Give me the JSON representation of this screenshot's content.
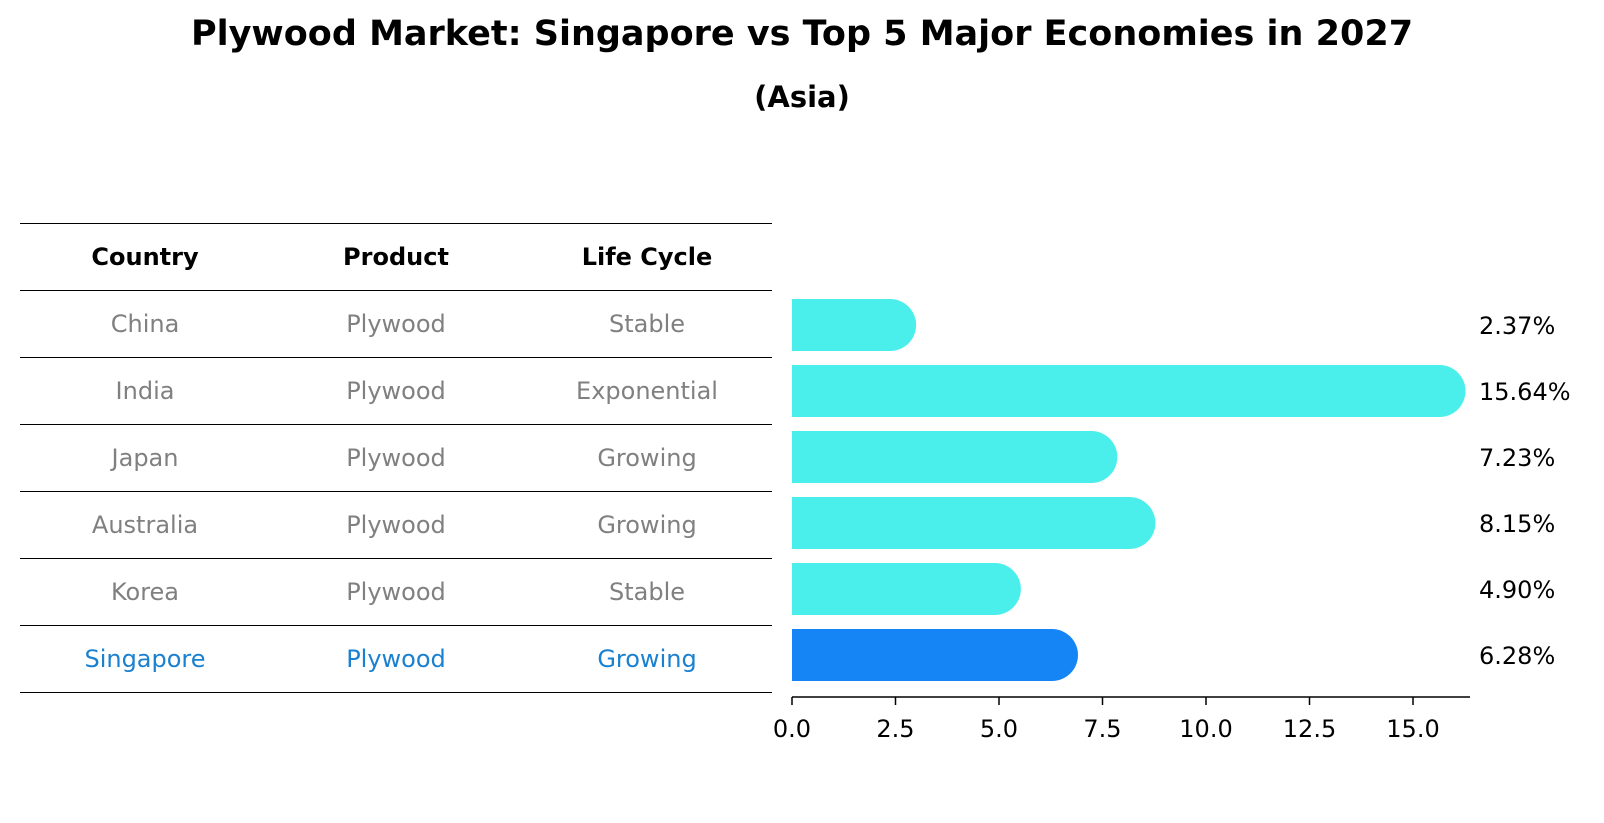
{
  "title": "Plywood Market: Singapore vs Top 5 Major Economies in 2027",
  "subtitle": "(Asia)",
  "table": {
    "headers": [
      "Country",
      "Product",
      "Life Cycle"
    ],
    "rows": [
      {
        "country": "China",
        "product": "Plywood",
        "life_cycle": "Stable"
      },
      {
        "country": "India",
        "product": "Plywood",
        "life_cycle": "Exponential"
      },
      {
        "country": "Japan",
        "product": "Plywood",
        "life_cycle": "Growing"
      },
      {
        "country": "Australia",
        "product": "Plywood",
        "life_cycle": "Growing"
      },
      {
        "country": "Korea",
        "product": "Plywood",
        "life_cycle": "Stable"
      },
      {
        "country": "Singapore",
        "product": "Plywood",
        "life_cycle": "Growing"
      }
    ]
  },
  "chart_data": {
    "type": "bar",
    "orientation": "horizontal",
    "categories": [
      "China",
      "India",
      "Japan",
      "Australia",
      "Korea",
      "Singapore"
    ],
    "values": [
      2.37,
      15.64,
      7.23,
      8.15,
      4.9,
      6.28
    ],
    "labels": [
      "2.37%",
      "15.64%",
      "7.23%",
      "8.15%",
      "4.90%",
      "6.28%"
    ],
    "highlight": "Singapore",
    "xlim": [
      0,
      16.5
    ],
    "xticks": [
      0.0,
      2.5,
      5.0,
      7.5,
      10.0,
      12.5,
      15.0
    ],
    "xtick_labels": [
      "0.0",
      "2.5",
      "5.0",
      "7.5",
      "10.0",
      "12.5",
      "15.0"
    ],
    "colors": {
      "bar": "#4aeeea",
      "highlight": "#1585f5"
    }
  }
}
